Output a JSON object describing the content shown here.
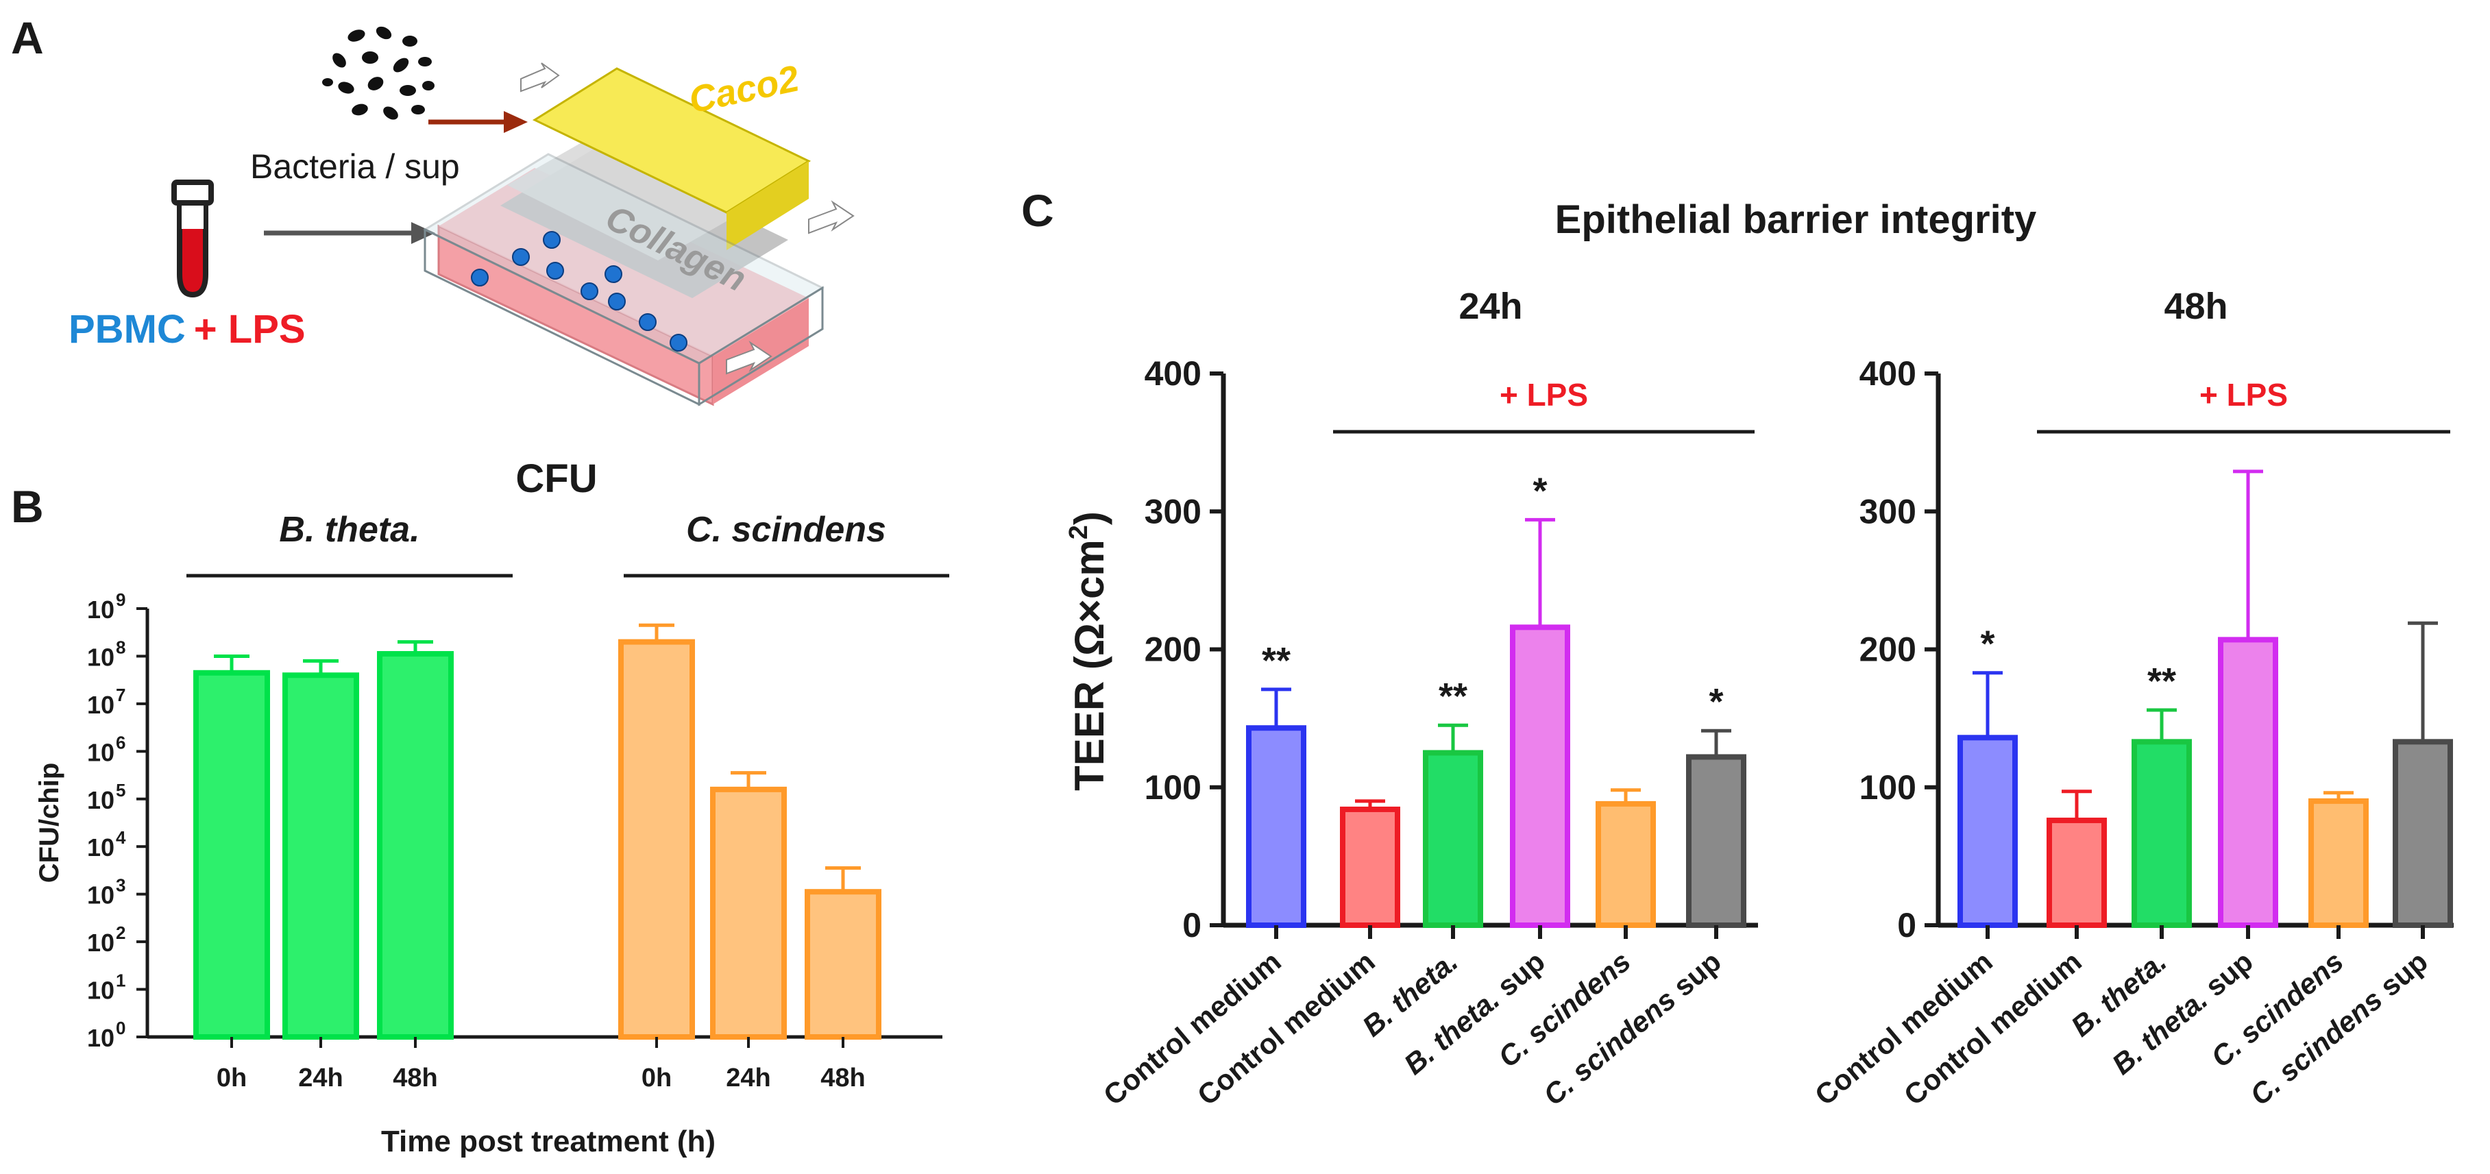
{
  "panel_a": {
    "label": "A",
    "bacteria_label": "Bacteria / sup",
    "caco2_label": "Caco2",
    "collagen_label": "Collagen",
    "pbmc_label": "PBMC",
    "lps_label": "+ LPS",
    "icons": [
      "bacteria-cluster-icon",
      "blood-tube-icon",
      "organ-chip-icon"
    ],
    "colors": {
      "pbmc": "#1e88d6",
      "lps": "#ee1c25",
      "caco2": "#f5d400",
      "collagen": "#8a8a8a"
    }
  },
  "chart_data": [
    {
      "id": "B",
      "panel_label": "B",
      "type": "bar",
      "title": "CFU",
      "ylabel": "CFU/chip",
      "xlabel": "Time post treatment (h)",
      "yscale": "log",
      "ylim_exp": [
        0,
        9
      ],
      "ytick_labels": [
        "10",
        "10",
        "10",
        "10",
        "10",
        "10",
        "10",
        "10",
        "10",
        "10"
      ],
      "ytick_exponents": [
        "0",
        "1",
        "2",
        "3",
        "4",
        "5",
        "6",
        "7",
        "8",
        "9"
      ],
      "groups": [
        {
          "label": "B. theta.",
          "color": "#00e24a",
          "fill": "#2df06c"
        },
        {
          "label": "C. scindens",
          "color": "#ff9a2a",
          "fill": "#ffc37e"
        }
      ],
      "categories": [
        "0h",
        "24h",
        "48h",
        "0h",
        "24h",
        "48h"
      ],
      "log_values": [
        7.65,
        7.6,
        8.05,
        8.3,
        5.2,
        3.05
      ],
      "log_errors": [
        8.0,
        7.9,
        8.3,
        8.65,
        5.55,
        3.55
      ],
      "bar_group": [
        0,
        0,
        0,
        1,
        1,
        1
      ]
    },
    {
      "id": "C24",
      "panel_label": "C",
      "figure_title": "Epithelial barrier integrity",
      "type": "bar",
      "title": "24h",
      "ylabel_main": "TEER (Ω×cm",
      "ylabel_sup": "2",
      "ylabel_end": ")",
      "ylim": [
        0,
        400
      ],
      "yticks": [
        "0",
        "100",
        "200",
        "300",
        "400"
      ],
      "bracket_label": "+ LPS",
      "categories": [
        {
          "text": "Control medium",
          "italic_part": "",
          "plain_part": "Control medium"
        },
        {
          "text": "Control medium",
          "italic_part": "",
          "plain_part": "Control medium"
        },
        {
          "text": "B. theta.",
          "italic_part": "B. theta.",
          "plain_part": ""
        },
        {
          "text": "B. theta. sup",
          "italic_part": "B. theta.",
          "plain_part": " sup"
        },
        {
          "text": "C. scindens",
          "italic_part": "C. scindens",
          "plain_part": ""
        },
        {
          "text": "C. scindens sup",
          "italic_part": "C. scindens",
          "plain_part": " sup"
        }
      ],
      "values": [
        143,
        84,
        125,
        216,
        88,
        122
      ],
      "errors": [
        28,
        6,
        20,
        78,
        10,
        19
      ],
      "significance": [
        "**",
        "",
        "**",
        "*",
        "",
        "*"
      ]
    },
    {
      "id": "C48",
      "panel_label": "",
      "type": "bar",
      "title": "48h",
      "ylim": [
        0,
        400
      ],
      "yticks": [
        "0",
        "100",
        "200",
        "300",
        "400"
      ],
      "bracket_label": "+ LPS",
      "categories": [
        {
          "text": "Control medium",
          "italic_part": "",
          "plain_part": "Control medium"
        },
        {
          "text": "Control medium",
          "italic_part": "",
          "plain_part": "Control medium"
        },
        {
          "text": "B. theta.",
          "italic_part": "B. theta.",
          "plain_part": ""
        },
        {
          "text": "B. theta. sup",
          "italic_part": "B. theta.",
          "plain_part": " sup"
        },
        {
          "text": "C. scindens",
          "italic_part": "C. scindens",
          "plain_part": ""
        },
        {
          "text": "C. scindens sup",
          "italic_part": "C. scindens",
          "plain_part": " sup"
        }
      ],
      "values": [
        136,
        76,
        133,
        207,
        90,
        133
      ],
      "errors": [
        47,
        21,
        23,
        122,
        6,
        86
      ],
      "significance": [
        "*",
        "",
        "**",
        "",
        "",
        ""
      ]
    }
  ],
  "teer_bar_colors": {
    "stroke": [
      "#2b34f0",
      "#ee1c25",
      "#19c742",
      "#d22cf0",
      "#ff9a2a",
      "#4a4a4a"
    ],
    "fill": [
      "#8c8cff",
      "#ff8383",
      "#22dd66",
      "#ec82ec",
      "#ffbd70",
      "#8a8a8a"
    ]
  }
}
